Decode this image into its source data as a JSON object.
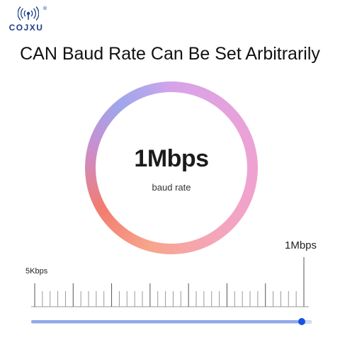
{
  "brand": {
    "name": "COJXU",
    "registered_mark": "®",
    "logo_icon": "wifi-signal-icon",
    "color": "#1c3f8a"
  },
  "headline": "CAN Baud Rate Can Be Set Arbitrarily",
  "display": {
    "value": "1Mbps",
    "caption": "baud rate"
  },
  "scale": {
    "min_label": "5Kbps",
    "max_label": "1Mbps",
    "major_ticks": 8,
    "minor_per_major": 4
  },
  "slider": {
    "level": 1.0,
    "track_color": "#d2dcf2",
    "fill_color": "#8fa8e8",
    "thumb_color": "#1553e6"
  }
}
